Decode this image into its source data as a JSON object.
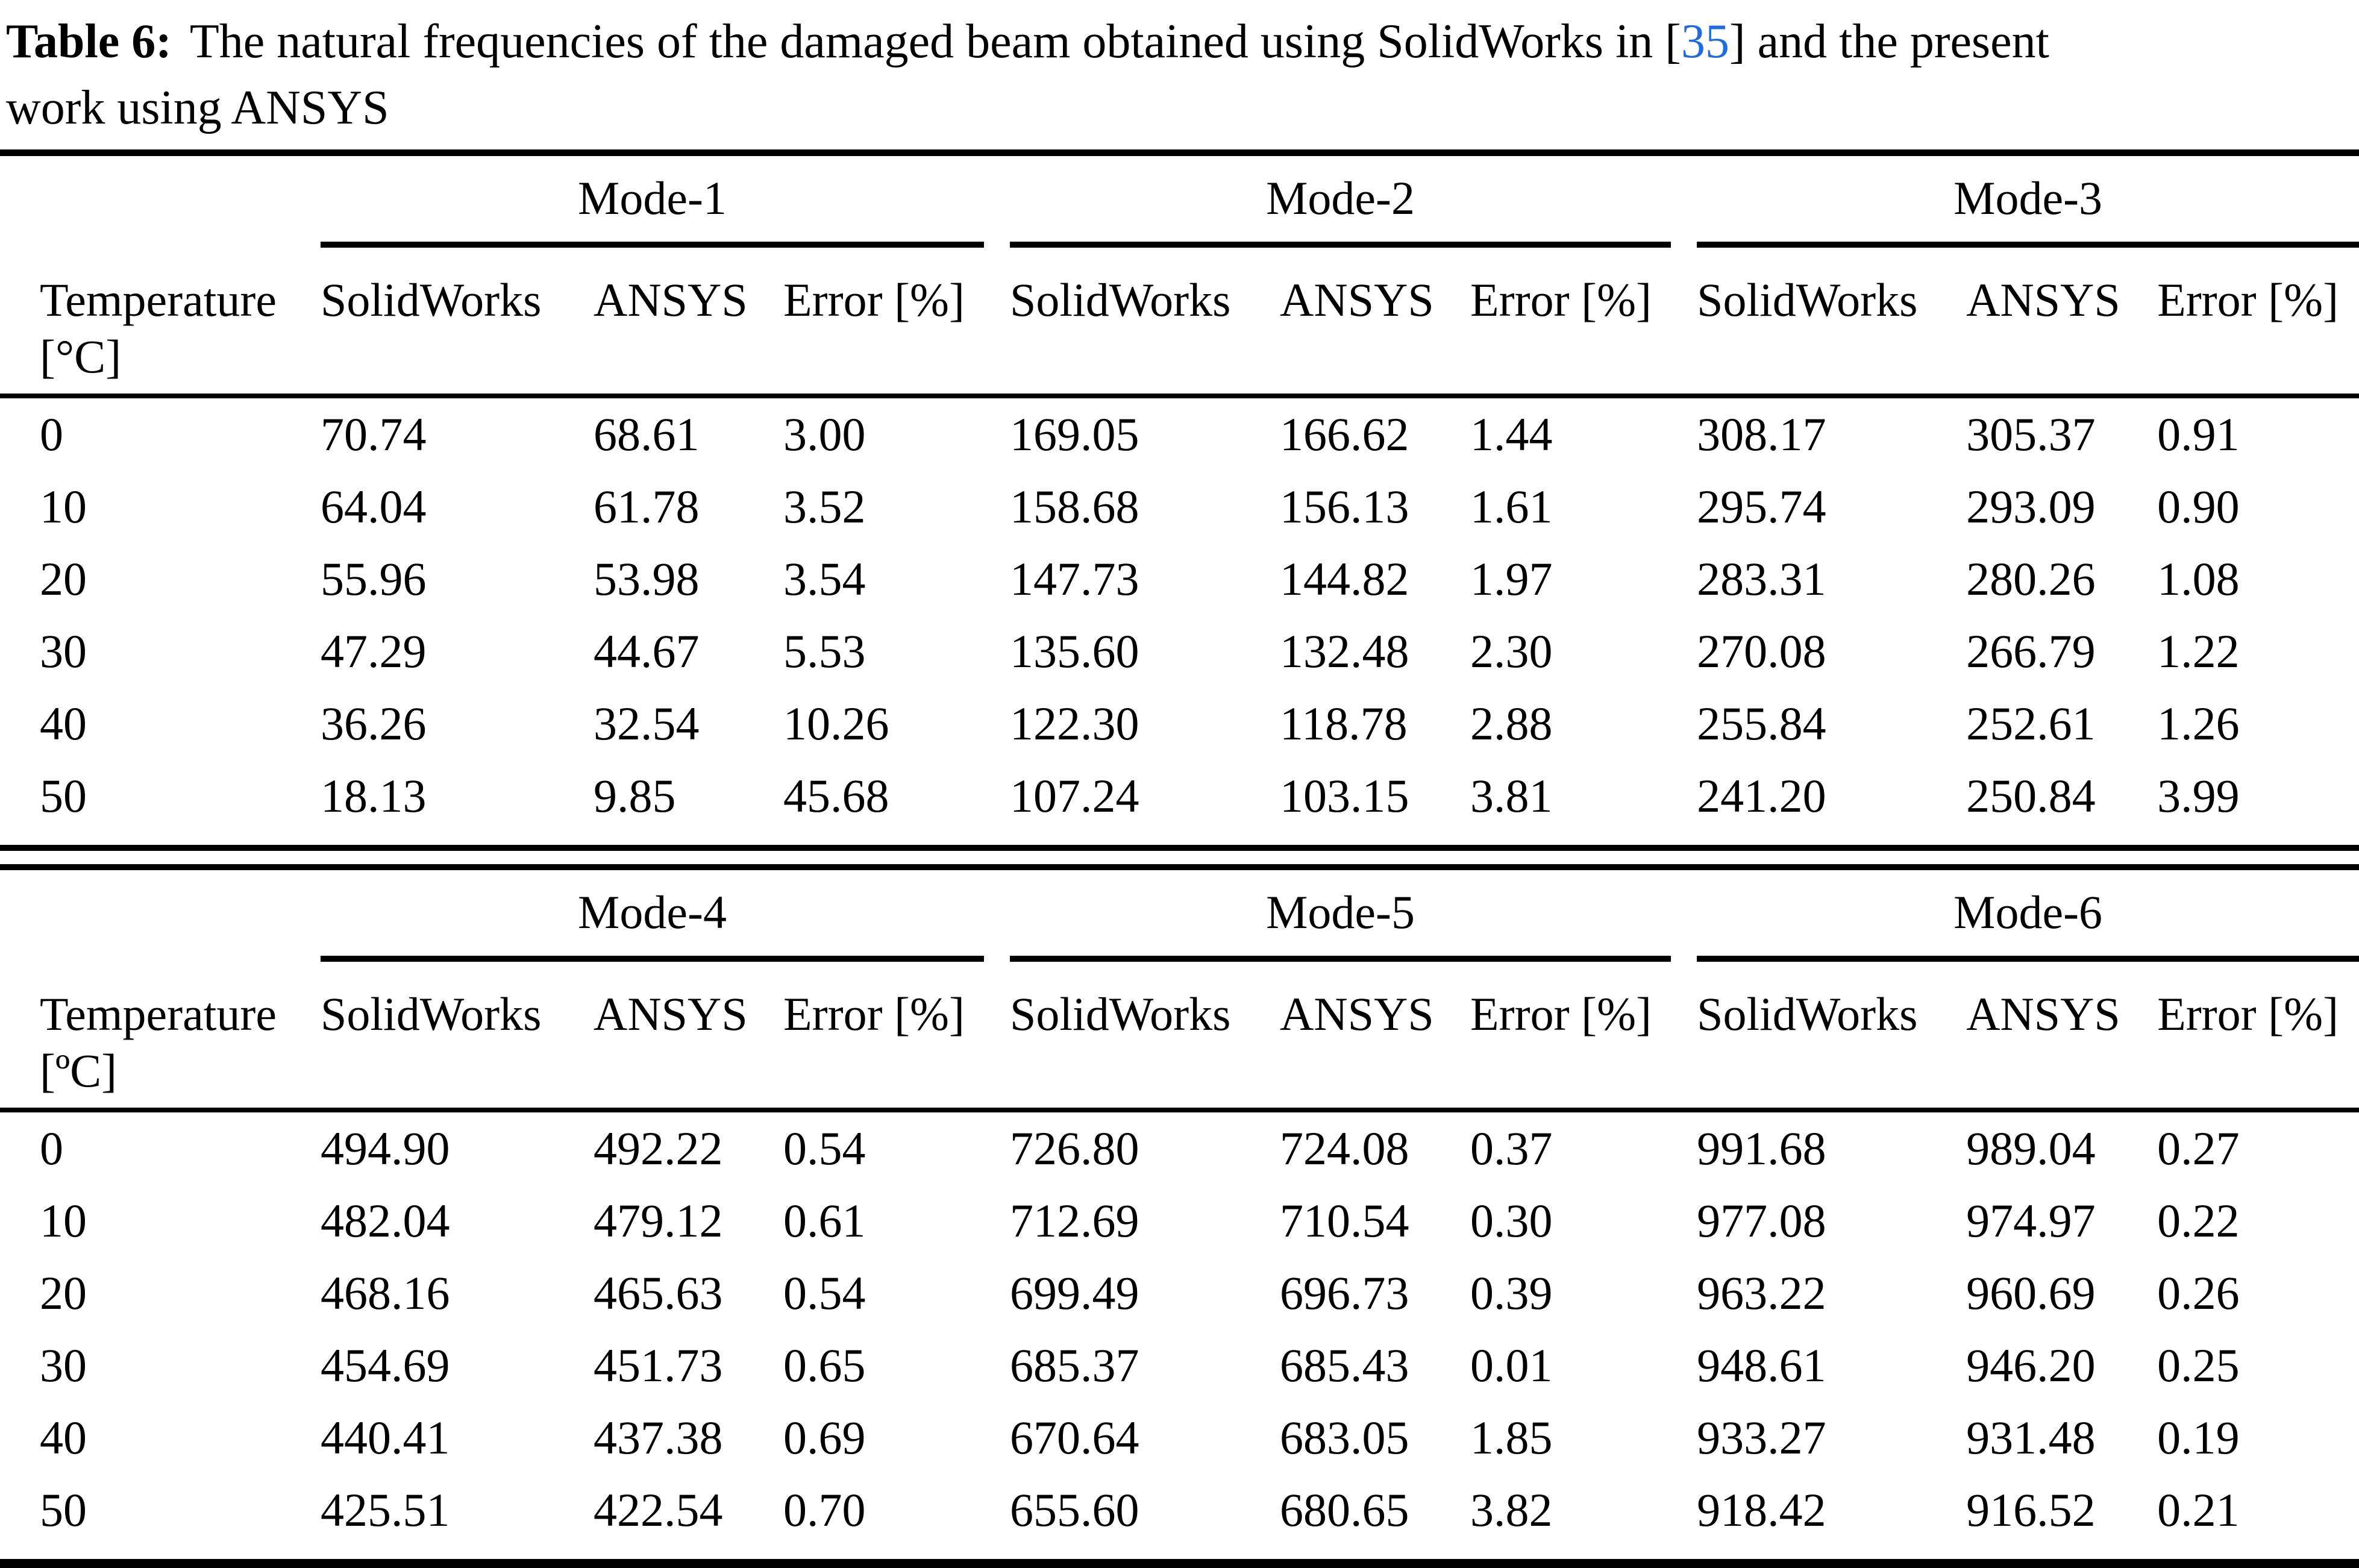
{
  "caption": {
    "label": "Table 6:",
    "text_before_cite": "The natural frequencies of the damaged beam obtained using SolidWorks in ",
    "bracket_open": "[",
    "citation": "35",
    "bracket_close": "]",
    "text_after_cite": " and the present",
    "line2": "work using ANSYS"
  },
  "colors": {
    "text": "#000000",
    "background": "#ffffff",
    "citation_blue": "#1d6ce1"
  },
  "tables": [
    {
      "groups": [
        "Mode-1",
        "Mode-2",
        "Mode-3"
      ],
      "temp_header": {
        "line1": "Temperature",
        "line2": "[°C]"
      },
      "columns": [
        "SolidWorks",
        "ANSYS",
        "Error [%]",
        "SolidWorks",
        "ANSYS",
        "Error [%]",
        "SolidWorks",
        "ANSYS",
        "Error [%]"
      ],
      "rows": [
        {
          "temp": "0",
          "values": [
            "70.74",
            "68.61",
            "3.00",
            "169.05",
            "166.62",
            "1.44",
            "308.17",
            "305.37",
            "0.91"
          ]
        },
        {
          "temp": "10",
          "values": [
            "64.04",
            "61.78",
            "3.52",
            "158.68",
            "156.13",
            "1.61",
            "295.74",
            "293.09",
            "0.90"
          ]
        },
        {
          "temp": "20",
          "values": [
            "55.96",
            "53.98",
            "3.54",
            "147.73",
            "144.82",
            "1.97",
            "283.31",
            "280.26",
            "1.08"
          ]
        },
        {
          "temp": "30",
          "values": [
            "47.29",
            "44.67",
            "5.53",
            "135.60",
            "132.48",
            "2.30",
            "270.08",
            "266.79",
            "1.22"
          ]
        },
        {
          "temp": "40",
          "values": [
            "36.26",
            "32.54",
            "10.26",
            "122.30",
            "118.78",
            "2.88",
            "255.84",
            "252.61",
            "1.26"
          ]
        },
        {
          "temp": "50",
          "values": [
            "18.13",
            "9.85",
            "45.68",
            "107.24",
            "103.15",
            "3.81",
            "241.20",
            "250.84",
            "3.99"
          ]
        }
      ]
    },
    {
      "groups": [
        "Mode-4",
        "Mode-5",
        "Mode-6"
      ],
      "temp_header": {
        "line1": "Temperature",
        "line2": "[ºC]"
      },
      "columns": [
        "SolidWorks",
        "ANSYS",
        "Error [%]",
        "SolidWorks",
        "ANSYS",
        "Error [%]",
        "SolidWorks",
        "ANSYS",
        "Error [%]"
      ],
      "rows": [
        {
          "temp": "0",
          "values": [
            "494.90",
            "492.22",
            "0.54",
            "726.80",
            "724.08",
            "0.37",
            "991.68",
            "989.04",
            "0.27"
          ]
        },
        {
          "temp": "10",
          "values": [
            "482.04",
            "479.12",
            "0.61",
            "712.69",
            "710.54",
            "0.30",
            "977.08",
            "974.97",
            "0.22"
          ]
        },
        {
          "temp": "20",
          "values": [
            "468.16",
            "465.63",
            "0.54",
            "699.49",
            "696.73",
            "0.39",
            "963.22",
            "960.69",
            "0.26"
          ]
        },
        {
          "temp": "30",
          "values": [
            "454.69",
            "451.73",
            "0.65",
            "685.37",
            "685.43",
            "0.01",
            "948.61",
            "946.20",
            "0.25"
          ]
        },
        {
          "temp": "40",
          "values": [
            "440.41",
            "437.38",
            "0.69",
            "670.64",
            "683.05",
            "1.85",
            "933.27",
            "931.48",
            "0.19"
          ]
        },
        {
          "temp": "50",
          "values": [
            "425.51",
            "422.54",
            "0.70",
            "655.60",
            "680.65",
            "3.82",
            "918.42",
            "916.52",
            "0.21"
          ]
        }
      ]
    }
  ]
}
